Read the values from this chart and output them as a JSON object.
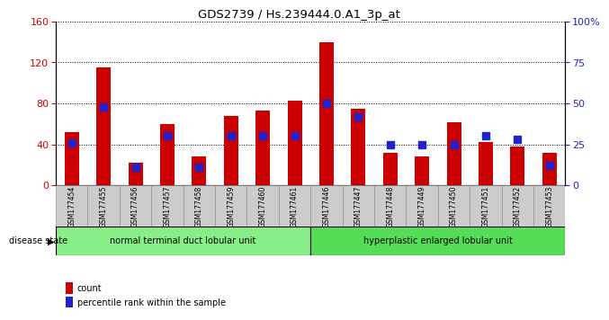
{
  "title": "GDS2739 / Hs.239444.0.A1_3p_at",
  "samples": [
    "GSM177454",
    "GSM177455",
    "GSM177456",
    "GSM177457",
    "GSM177458",
    "GSM177459",
    "GSM177460",
    "GSM177461",
    "GSM177446",
    "GSM177447",
    "GSM177448",
    "GSM177449",
    "GSM177450",
    "GSM177451",
    "GSM177452",
    "GSM177453"
  ],
  "counts": [
    52,
    115,
    22,
    60,
    28,
    68,
    73,
    83,
    140,
    75,
    32,
    28,
    62,
    42,
    38,
    32
  ],
  "percentiles": [
    26,
    48,
    11,
    30,
    11,
    30,
    30,
    30,
    50,
    42,
    25,
    25,
    25,
    30,
    28,
    12
  ],
  "group1_label": "normal terminal duct lobular unit",
  "group2_label": "hyperplastic enlarged lobular unit",
  "group1_count": 8,
  "group2_count": 8,
  "ylim_left": [
    0,
    160
  ],
  "ylim_right": [
    0,
    100
  ],
  "yticks_left": [
    0,
    40,
    80,
    120,
    160
  ],
  "yticks_right": [
    0,
    25,
    50,
    75,
    100
  ],
  "ytick_labels_right": [
    "0",
    "25",
    "50",
    "75",
    "100%"
  ],
  "bar_color_count": "#cc0000",
  "bar_color_pct": "#2222cc",
  "background_color": "#ffffff",
  "tick_label_bg": "#cccccc",
  "group1_bg": "#88ee88",
  "group2_bg": "#55dd55",
  "legend_count_label": "count",
  "legend_pct_label": "percentile rank within the sample",
  "disease_state_label": "disease state"
}
